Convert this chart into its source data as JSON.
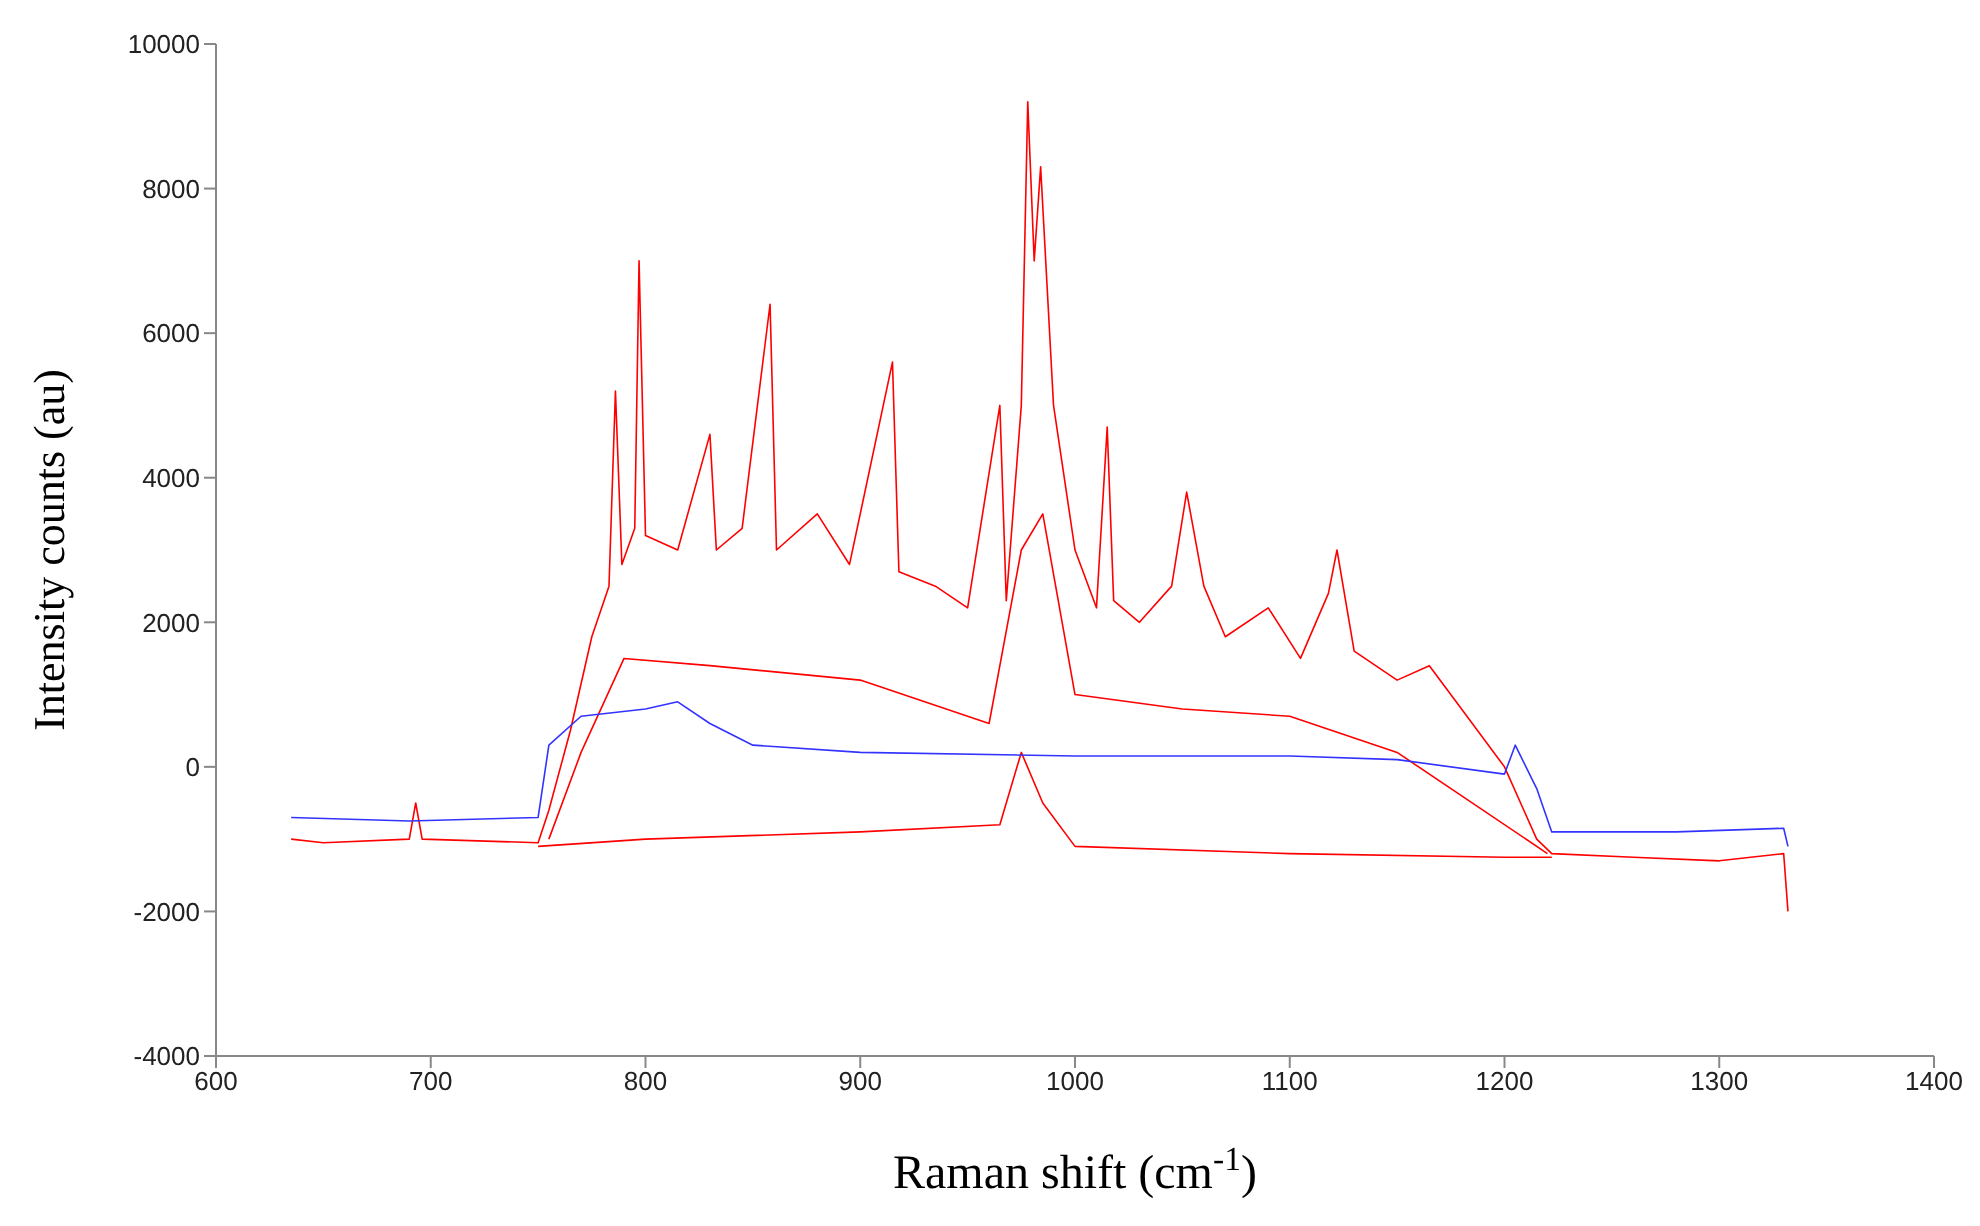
{
  "chart_data": {
    "type": "line",
    "xlabel": "Raman shift (cm$^{-1}$)",
    "ylabel": "Intensity counts (au)",
    "xlim": [
      600,
      1400
    ],
    "xticks": [
      600,
      700,
      800,
      900,
      1000,
      1100,
      1200,
      1300,
      1400
    ],
    "ylim": [
      -4000,
      10000
    ],
    "yticks": [
      -4000,
      -2000,
      0,
      2000,
      4000,
      6000,
      8000,
      10000
    ],
    "marker": "none",
    "line_style": "solid",
    "series": [
      {
        "color": "#ff0000",
        "x": [
          635,
          650,
          690,
          693,
          696,
          750,
          755,
          765,
          775,
          783,
          786,
          789,
          795,
          797,
          800,
          815,
          830,
          833,
          845,
          858,
          861,
          880,
          895,
          915,
          918,
          935,
          950,
          965,
          968,
          975,
          978,
          981,
          984,
          990,
          1000,
          1010,
          1015,
          1018,
          1030,
          1045,
          1052,
          1060,
          1070,
          1090,
          1105,
          1118,
          1122,
          1130,
          1150,
          1165,
          1180,
          1200,
          1215,
          1222,
          1260,
          1300,
          1330,
          1332
        ],
        "values": [
          -1000,
          -1050,
          -1000,
          -500,
          -1000,
          -1050,
          -600,
          500,
          1800,
          2500,
          5200,
          2800,
          3300,
          7000,
          3200,
          3000,
          4600,
          3000,
          3300,
          6400,
          3000,
          3500,
          2800,
          5600,
          2700,
          2500,
          2200,
          5000,
          2300,
          5000,
          9200,
          7000,
          8300,
          5000,
          3000,
          2200,
          4700,
          2300,
          2000,
          2500,
          3800,
          2500,
          1800,
          2200,
          1500,
          2400,
          3000,
          1600,
          1200,
          1400,
          800,
          0,
          -1000,
          -1200,
          -1250,
          -1300,
          -1200,
          -2000
        ]
      },
      {
        "color": "#ff0000",
        "x": [
          755,
          770,
          790,
          830,
          900,
          960,
          975,
          985,
          1000,
          1050,
          1100,
          1150,
          1220
        ],
        "values": [
          -1000,
          200,
          1500,
          1400,
          1200,
          600,
          3000,
          3500,
          1000,
          800,
          700,
          200,
          -1200
        ]
      },
      {
        "color": "#ff0000",
        "x": [
          750,
          800,
          900,
          965,
          975,
          985,
          1000,
          1100,
          1200,
          1222
        ],
        "values": [
          -1100,
          -1000,
          -900,
          -800,
          200,
          -500,
          -1100,
          -1200,
          -1250,
          -1250
        ]
      },
      {
        "color": "#3333ff",
        "x": [
          635,
          690,
          750,
          755,
          770,
          800,
          815,
          830,
          850,
          900,
          1000,
          1100,
          1150,
          1200,
          1205,
          1215,
          1222,
          1280,
          1330,
          1332
        ],
        "values": [
          -700,
          -750,
          -700,
          300,
          700,
          800,
          900,
          600,
          300,
          200,
          150,
          150,
          100,
          -100,
          300,
          -300,
          -900,
          -900,
          -850,
          -1100
        ]
      }
    ]
  }
}
